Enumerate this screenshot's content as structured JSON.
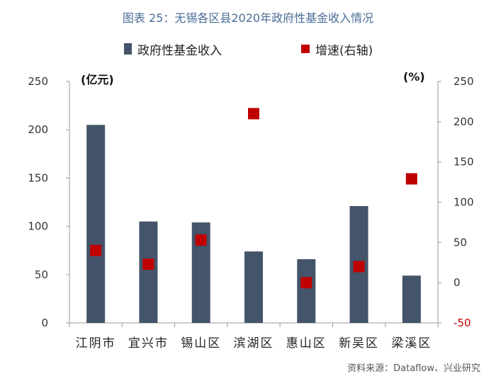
{
  "title": "图表 25：无锡各区县2020年政府性基金收入情况",
  "unit_left": "(亿元)",
  "unit_right": "(%)",
  "source": "资料来源：Dataflow、兴业研究",
  "colors": {
    "bar": "#44546a",
    "marker": "#c00000",
    "right_axis_negative": "#c00000",
    "title": "#4a6d96"
  },
  "chart_data": {
    "type": "bar",
    "categories": [
      "江阴市",
      "宜兴市",
      "锡山区",
      "滨湖区",
      "惠山区",
      "新吴区",
      "梁溪区"
    ],
    "series": [
      {
        "name": "政府性基金收入",
        "type": "bar",
        "axis": "left",
        "values": [
          205,
          105,
          104,
          74,
          66,
          121,
          49
        ]
      },
      {
        "name": "增速(右轴)",
        "type": "scatter",
        "axis": "right",
        "values": [
          40,
          23,
          53,
          210,
          0,
          20,
          129
        ]
      }
    ],
    "y_left": {
      "min": 0,
      "max": 250,
      "ticks": [
        0,
        50,
        100,
        150,
        200,
        250
      ]
    },
    "y_right": {
      "min": -50,
      "max": 250,
      "ticks": [
        -50,
        0,
        50,
        100,
        150,
        200,
        250
      ]
    },
    "legend_position": "top",
    "grid": false
  }
}
